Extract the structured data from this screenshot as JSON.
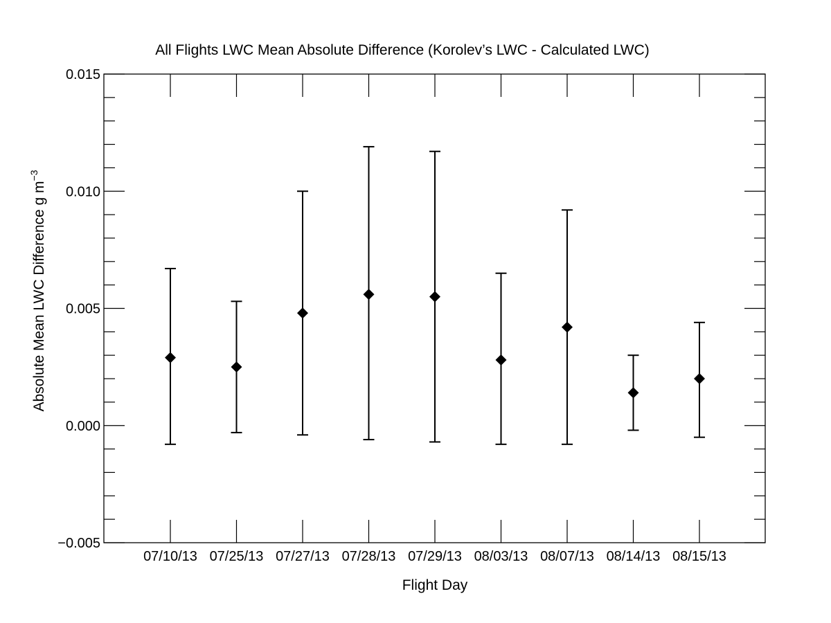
{
  "chart_data": {
    "type": "scatter",
    "title": "All Flights LWC Mean Absolute Difference (Korolev’s LWC - Calculated LWC)",
    "xlabel": "Flight Day",
    "ylabel": "Absolute Mean LWC Difference g m",
    "ylabel_superscript": "−3",
    "ylim": [
      -0.005,
      0.015
    ],
    "yticks": [
      -0.005,
      0.0,
      0.005,
      0.01,
      0.015
    ],
    "ytick_labels": [
      "−0.005",
      "0.000",
      "0.005",
      "0.010",
      "0.015"
    ],
    "yminor_step": 0.001,
    "categories": [
      "07/10/13",
      "07/25/13",
      "07/27/13",
      "07/28/13",
      "07/29/13",
      "08/03/13",
      "08/07/13",
      "08/14/13",
      "08/15/13"
    ],
    "values": [
      0.0029,
      0.0025,
      0.0048,
      0.0056,
      0.0055,
      0.0028,
      0.0042,
      0.0014,
      0.002
    ],
    "error_upper": [
      0.0067,
      0.0053,
      0.01,
      0.0119,
      0.0117,
      0.0065,
      0.0092,
      0.003,
      0.0044
    ],
    "error_lower": [
      -0.0008,
      -0.0003,
      -0.0004,
      -0.0006,
      -0.0007,
      -0.0008,
      -0.0008,
      -0.0002,
      -0.0005
    ],
    "marker": "diamond",
    "marker_color": "#000000",
    "grid": false
  }
}
